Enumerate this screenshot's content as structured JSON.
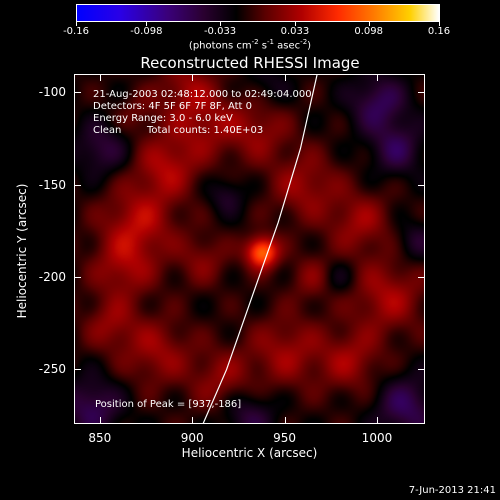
{
  "colorbar": {
    "ticks": [
      "-0.16",
      "-0.098",
      "-0.033",
      "0.033",
      "0.098",
      "0.16"
    ],
    "tick_values": [
      -0.16,
      -0.098,
      -0.033,
      0.033,
      0.098,
      0.16
    ],
    "min": -0.16,
    "max": 0.16,
    "unit": "(photons cm",
    "unit_exp1": "-2",
    "unit_mid": " s",
    "unit_exp2": "-1",
    "unit_mid2": " asec",
    "unit_exp3": "-2",
    "unit_end": ")"
  },
  "title": "Reconstructed RHESSI Image",
  "info": {
    "time_range": "21-Aug-2003 02:48:12.000 to 02:49:04.000",
    "detectors": "Detectors: 4F 5F 6F 7F 8F, Att 0",
    "energy": "Energy Range: 3.0 - 6.0 keV",
    "method": "Clean",
    "counts": "Total counts: 1.40E+03",
    "peak": "Position of Peak = [937,-186]"
  },
  "axes": {
    "xlabel": "Heliocentric X (arcsec)",
    "ylabel": "Heliocentric Y (arcsec)",
    "xlim": [
      836,
      1026
    ],
    "ylim": [
      -280,
      -90
    ],
    "xticks": [
      850,
      900,
      950,
      1000
    ],
    "xtick_labels": [
      "850",
      "900",
      "950",
      "1000"
    ],
    "yticks": [
      -100,
      -150,
      -200,
      -250
    ],
    "ytick_labels": [
      "-100",
      "-150",
      "-200",
      "-250"
    ]
  },
  "image": {
    "peak_position": [
      937,
      -186
    ],
    "peak_value": 0.16,
    "limb_arc": [
      [
        967,
        -90
      ],
      [
        958,
        -130
      ],
      [
        946,
        -170
      ],
      [
        932,
        -210
      ],
      [
        918,
        -250
      ],
      [
        905,
        -280
      ]
    ],
    "limb_color": "#ffffff"
  },
  "timestamp": "7-Jun-2013 21:41"
}
